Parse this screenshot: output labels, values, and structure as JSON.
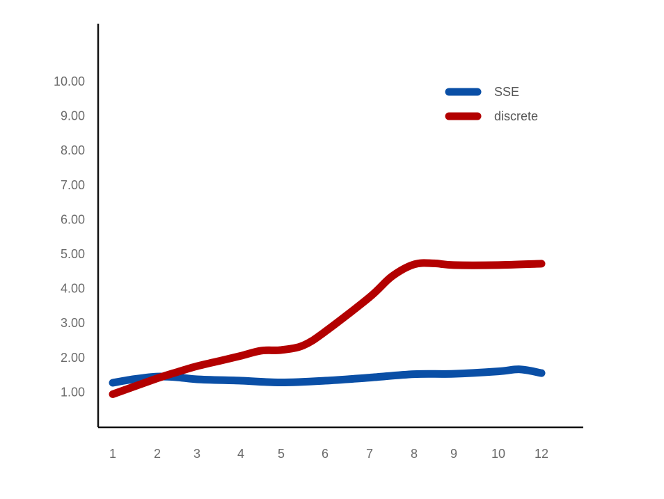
{
  "chart_data": {
    "type": "line",
    "x": [
      "1",
      "2",
      "3",
      "4",
      "5",
      "6",
      "7",
      "8",
      "9",
      "10",
      "12"
    ],
    "y_ticks": [
      "1.00",
      "2.00",
      "3.00",
      "4.00",
      "5.00",
      "6.00",
      "7.00",
      "8.00",
      "9.00",
      "10.00"
    ],
    "ylim": [
      0,
      10.9
    ],
    "grid": false,
    "legend_position": "top-right",
    "series": [
      {
        "name": "SSE",
        "color": "#0a4fa6",
        "points": [
          {
            "x": 1,
            "y": 1.27
          },
          {
            "x": 1.5,
            "y": 1.38
          },
          {
            "x": 2,
            "y": 1.45
          },
          {
            "x": 2.5,
            "y": 1.43
          },
          {
            "x": 3,
            "y": 1.37
          },
          {
            "x": 4,
            "y": 1.33
          },
          {
            "x": 5,
            "y": 1.28
          },
          {
            "x": 6,
            "y": 1.33
          },
          {
            "x": 7,
            "y": 1.42
          },
          {
            "x": 8,
            "y": 1.52
          },
          {
            "x": 9,
            "y": 1.53
          },
          {
            "x": 10,
            "y": 1.6
          },
          {
            "x": 10.5,
            "y": 1.66
          },
          {
            "x": 11,
            "y": 1.55
          }
        ]
      },
      {
        "name": "discrete",
        "color": "#b30000",
        "points": [
          {
            "x": 1,
            "y": 0.94
          },
          {
            "x": 2,
            "y": 1.4
          },
          {
            "x": 2.5,
            "y": 1.58
          },
          {
            "x": 3,
            "y": 1.75
          },
          {
            "x": 3.5,
            "y": 1.9
          },
          {
            "x": 4,
            "y": 2.05
          },
          {
            "x": 4.5,
            "y": 2.2
          },
          {
            "x": 5,
            "y": 2.22
          },
          {
            "x": 5.5,
            "y": 2.35
          },
          {
            "x": 6,
            "y": 2.75
          },
          {
            "x": 7,
            "y": 3.75
          },
          {
            "x": 7.5,
            "y": 4.35
          },
          {
            "x": 8,
            "y": 4.7
          },
          {
            "x": 8.5,
            "y": 4.73
          },
          {
            "x": 9,
            "y": 4.68
          },
          {
            "x": 10,
            "y": 4.68
          },
          {
            "x": 11,
            "y": 4.72
          }
        ]
      }
    ]
  }
}
